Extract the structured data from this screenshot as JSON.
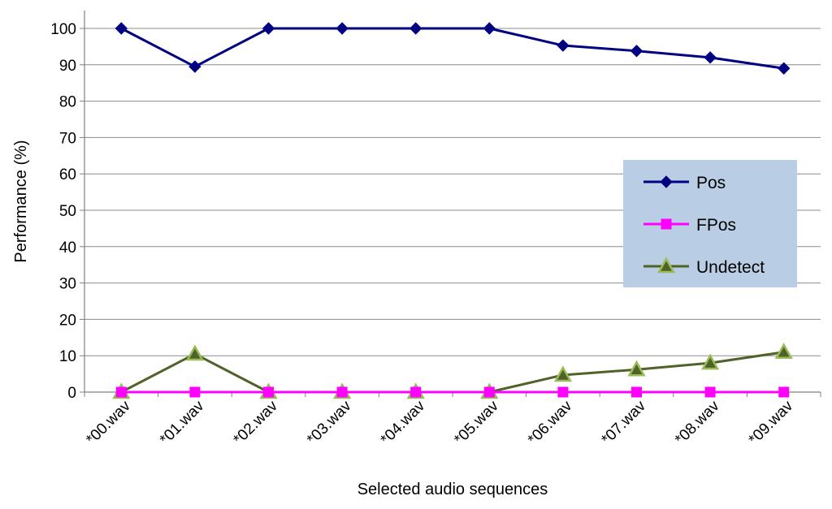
{
  "chart_data": {
    "type": "line",
    "title": "",
    "xlabel": "Selected audio sequences",
    "ylabel": "Performance (%)",
    "ylim": [
      0,
      100
    ],
    "yticks": [
      0,
      10,
      20,
      30,
      40,
      50,
      60,
      70,
      80,
      90,
      100
    ],
    "grid": true,
    "legend_position": "right",
    "categories": [
      "*00.wav",
      "*01.wav",
      "*02.wav",
      "*03.wav",
      "*04.wav",
      "*05.wav",
      "*06.wav",
      "*07.wav",
      "*08.wav",
      "*09.wav"
    ],
    "series": [
      {
        "name": "Pos",
        "color": "#000080",
        "marker": "diamond",
        "values": [
          100,
          89.5,
          100,
          100,
          100,
          100,
          95.3,
          93.8,
          92,
          89
        ]
      },
      {
        "name": "FPos",
        "color": "#ff00ff",
        "marker": "square",
        "values": [
          0,
          0,
          0,
          0,
          0,
          0,
          0,
          0,
          0,
          0
        ]
      },
      {
        "name": "Undetect",
        "color": "#4f6228",
        "marker": "triangle",
        "marker_fill": "#9bbb59",
        "values": [
          0,
          10.5,
          0,
          0,
          0,
          0,
          4.7,
          6.2,
          8,
          11
        ]
      }
    ],
    "legend_background": "#b9cde5"
  }
}
